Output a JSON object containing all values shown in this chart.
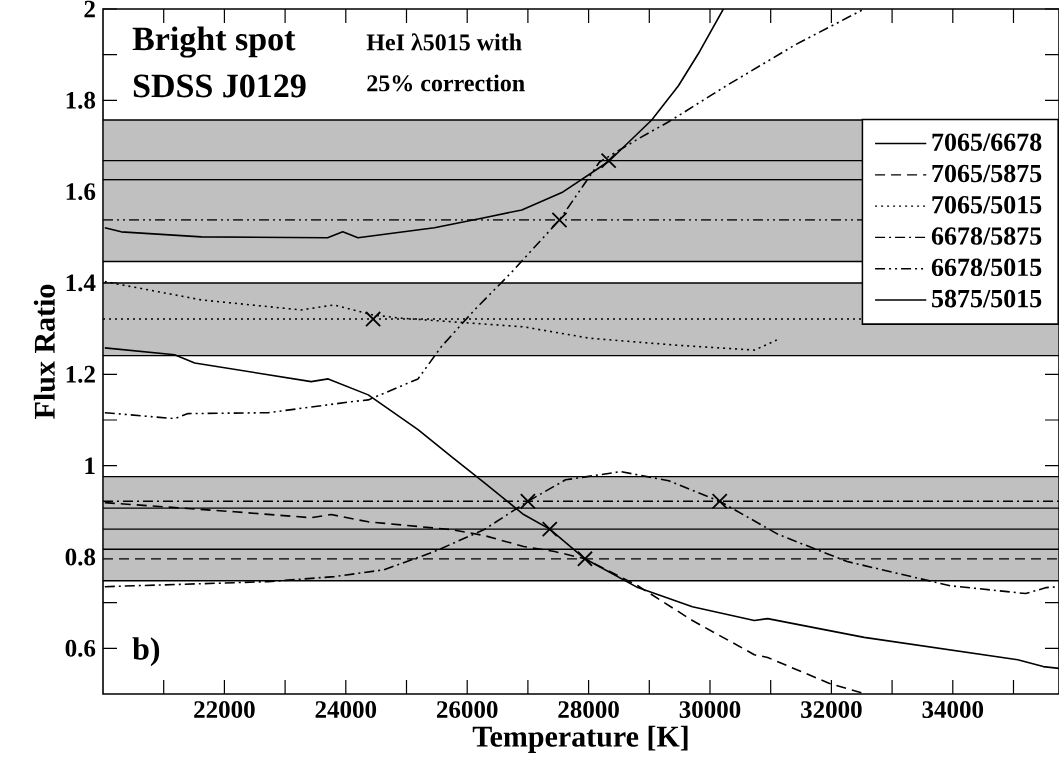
{
  "chart_data": {
    "type": "line",
    "xlabel": "Temperature [K]",
    "ylabel": "Flux Ratio",
    "xlim": [
      20000,
      35750
    ],
    "ylim": [
      0.5,
      2
    ],
    "xticks": [
      {
        "value": 21000,
        "label": null
      },
      22000,
      {
        "value": 23000,
        "label": null
      },
      24000,
      {
        "value": 25000,
        "label": null
      },
      26000,
      {
        "value": 27000,
        "label": null
      },
      28000,
      {
        "value": 29000,
        "label": null
      },
      30000,
      {
        "value": 31000,
        "label": null
      },
      32000,
      {
        "value": 33000,
        "label": null
      },
      34000,
      {
        "value": 35000,
        "label": null
      }
    ],
    "yticks": [
      0.6,
      {
        "value": 0.7,
        "label": null
      },
      0.8,
      {
        "value": 0.9,
        "label": null
      },
      1,
      {
        "value": 1.1,
        "label": null
      },
      1.2,
      {
        "value": 1.3,
        "label": null
      },
      1.4,
      {
        "value": 1.5,
        "label": null
      },
      1.6,
      {
        "value": 1.7,
        "label": null
      },
      1.8,
      {
        "value": 1.9,
        "label": null
      },
      2
    ],
    "legend": "right",
    "annotations": [
      "Bright spot",
      "SDSS J0129",
      "HeI λ5015 with",
      "25% correction",
      "b)"
    ],
    "bands": [
      {
        "axis": "y",
        "from": 1.447,
        "to": 1.757,
        "color": "#c0c0c0"
      },
      {
        "axis": "y",
        "from": 1.241,
        "to": 1.4,
        "color": "#c0c0c0"
      },
      {
        "axis": "y",
        "from": 0.748,
        "to": 0.976,
        "color": "#c0c0c0"
      }
    ],
    "ref_lines": [
      {
        "axis": "y",
        "value": 1.668,
        "line_style": "solid"
      },
      {
        "axis": "y",
        "value": 1.626,
        "line_style": "solid"
      },
      {
        "axis": "y",
        "value": 1.538,
        "line_style": "dashdotdot"
      },
      {
        "axis": "y",
        "value": 1.321,
        "line_style": "dotted"
      },
      {
        "axis": "y",
        "value": 0.922,
        "line_style": "dashdot"
      },
      {
        "axis": "y",
        "value": 0.907,
        "line_style": "solid"
      },
      {
        "axis": "y",
        "value": 0.861,
        "line_style": "solid"
      },
      {
        "axis": "y",
        "value": 0.817,
        "line_style": "solid"
      },
      {
        "axis": "y",
        "value": 0.796,
        "line_style": "dashed"
      }
    ],
    "series": [
      {
        "name": "7065/6678",
        "color": "#000000",
        "line_style": "solid",
        "x": [
          20030,
          20300,
          21620,
          23700,
          23950,
          24200,
          25460,
          26280,
          26900,
          27560,
          28330,
          29040,
          29480,
          29830,
          30220
        ],
        "values": [
          1.521,
          1.512,
          1.501,
          1.499,
          1.512,
          1.499,
          1.521,
          1.543,
          1.56,
          1.598,
          1.666,
          1.757,
          1.832,
          1.907,
          2.0
        ]
      },
      {
        "name": "7065/5875",
        "color": "#000000",
        "line_style": "dashed",
        "x": [
          20030,
          22170,
          23430,
          23760,
          24370,
          25740,
          26280,
          26930,
          27440,
          27940,
          28810,
          29710,
          30730,
          30950,
          31970,
          32560
        ],
        "values": [
          0.919,
          0.899,
          0.886,
          0.893,
          0.877,
          0.86,
          0.847,
          0.823,
          0.812,
          0.796,
          0.737,
          0.661,
          0.586,
          0.58,
          0.523,
          0.5
        ]
      },
      {
        "name": "7065/5015",
        "color": "#000000",
        "line_style": "dotted",
        "x": [
          20030,
          21620,
          23260,
          23810,
          24450,
          24910,
          26930,
          28020,
          29430,
          30730,
          31100
        ],
        "values": [
          1.403,
          1.363,
          1.341,
          1.352,
          1.33,
          1.323,
          1.304,
          1.279,
          1.264,
          1.253,
          1.275
        ]
      },
      {
        "name": "6678/5875",
        "color": "#000000",
        "line_style": "dashdot",
        "x": [
          20030,
          22720,
          23810,
          24630,
          25460,
          26280,
          27000,
          27620,
          28530,
          29320,
          30160,
          31130,
          32260,
          33960,
          35200,
          35540,
          35750
        ],
        "values": [
          0.735,
          0.746,
          0.757,
          0.772,
          0.812,
          0.86,
          0.922,
          0.969,
          0.987,
          0.967,
          0.922,
          0.849,
          0.79,
          0.737,
          0.72,
          0.733,
          0.735
        ]
      },
      {
        "name": "6678/5015",
        "color": "#000000",
        "line_style": "dashdotdot",
        "x": [
          20030,
          21180,
          21400,
          22720,
          24090,
          24370,
          25190,
          25570,
          26120,
          26720,
          27520,
          28180,
          28860,
          29320,
          30270,
          31410,
          32540
        ],
        "values": [
          1.116,
          1.103,
          1.114,
          1.116,
          1.14,
          1.144,
          1.19,
          1.26,
          1.341,
          1.422,
          1.538,
          1.665,
          1.719,
          1.753,
          1.832,
          1.922,
          2.0
        ]
      },
      {
        "name": "5875/5015",
        "color": "#000000",
        "line_style": "solid",
        "x": [
          20030,
          21180,
          21510,
          23430,
          23710,
          24370,
          25190,
          25740,
          26280,
          26930,
          27360,
          27940,
          28810,
          29710,
          30730,
          30950,
          32540,
          35070,
          35490,
          35750
        ],
        "values": [
          1.258,
          1.243,
          1.225,
          1.184,
          1.19,
          1.155,
          1.079,
          1.02,
          0.963,
          0.893,
          0.861,
          0.796,
          0.733,
          0.691,
          0.661,
          0.665,
          0.624,
          0.575,
          0.56,
          0.556
        ]
      },
      {
        "type": "scatter",
        "marker": "cross",
        "color": "#000000",
        "x": [
          24450,
          27520,
          28330,
          27000,
          27360,
          27940,
          30160
        ],
        "values": [
          1.321,
          1.538,
          1.668,
          0.922,
          0.861,
          0.796,
          0.922
        ]
      }
    ]
  }
}
